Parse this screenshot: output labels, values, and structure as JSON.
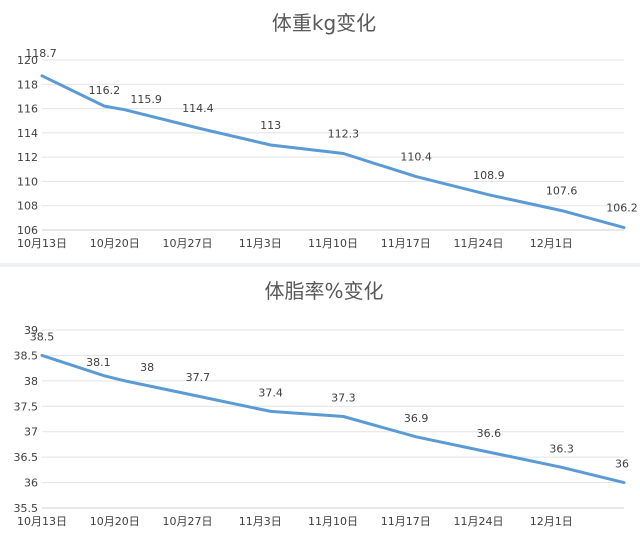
{
  "colors": {
    "series": "#5b9bd5",
    "grid": "#e3e3e3",
    "text": "#404040",
    "title": "#595959"
  },
  "chart_data": [
    {
      "type": "line",
      "title": "体重kg变化",
      "xlabel": "",
      "ylabel": "",
      "x_type": "date",
      "x_tick_labels": [
        "10月13日",
        "10月20日",
        "10月27日",
        "11月3日",
        "11月10日",
        "11月17日",
        "11月24日",
        "12月1日"
      ],
      "x_tick_dates": [
        "10-13",
        "10-20",
        "10-27",
        "11-03",
        "11-10",
        "11-17",
        "11-24",
        "12-01"
      ],
      "xlim": [
        "10-13",
        "12-08"
      ],
      "ylim": [
        106,
        120
      ],
      "y_ticks": [
        106,
        108,
        110,
        112,
        114,
        116,
        118,
        120
      ],
      "grid": true,
      "legend": "none",
      "x": [
        "10-13",
        "10-19",
        "10-21",
        "10-28",
        "11-04",
        "11-11",
        "11-18",
        "11-25",
        "12-02",
        "12-08"
      ],
      "series": [
        {
          "values": [
            118.7,
            116.2,
            115.9,
            114.4,
            113,
            112.3,
            110.4,
            108.9,
            107.6,
            106.2
          ],
          "data_labels": [
            "118.7",
            "116.2",
            "115.9",
            "114.4",
            "113",
            "112.3",
            "110.4",
            "108.9",
            "107.6",
            "106.2"
          ]
        }
      ]
    },
    {
      "type": "line",
      "title": "体脂率%变化",
      "xlabel": "",
      "ylabel": "",
      "x_type": "date",
      "x_tick_labels": [
        "10月13日",
        "10月20日",
        "10月27日",
        "11月3日",
        "11月10日",
        "11月17日",
        "11月24日",
        "12月1日"
      ],
      "x_tick_dates": [
        "10-13",
        "10-20",
        "10-27",
        "11-03",
        "11-10",
        "11-17",
        "11-24",
        "12-01"
      ],
      "xlim": [
        "10-13",
        "12-08"
      ],
      "ylim": [
        35.5,
        39
      ],
      "y_ticks": [
        "35.5",
        "36",
        "36.5",
        "37",
        "37.5",
        "38",
        "38.5",
        "39"
      ],
      "grid": true,
      "legend": "none",
      "x": [
        "10-13",
        "10-19",
        "10-21",
        "10-28",
        "11-04",
        "11-11",
        "11-18",
        "11-25",
        "12-02",
        "12-08"
      ],
      "series": [
        {
          "values": [
            38.5,
            38.1,
            38,
            37.7,
            37.4,
            37.3,
            36.9,
            36.6,
            36.3,
            36
          ],
          "data_labels": [
            "38.5",
            "38.1",
            "38",
            "37.7",
            "37.4",
            "37.3",
            "36.9",
            "36.6",
            "36.3",
            "36"
          ]
        }
      ]
    }
  ]
}
